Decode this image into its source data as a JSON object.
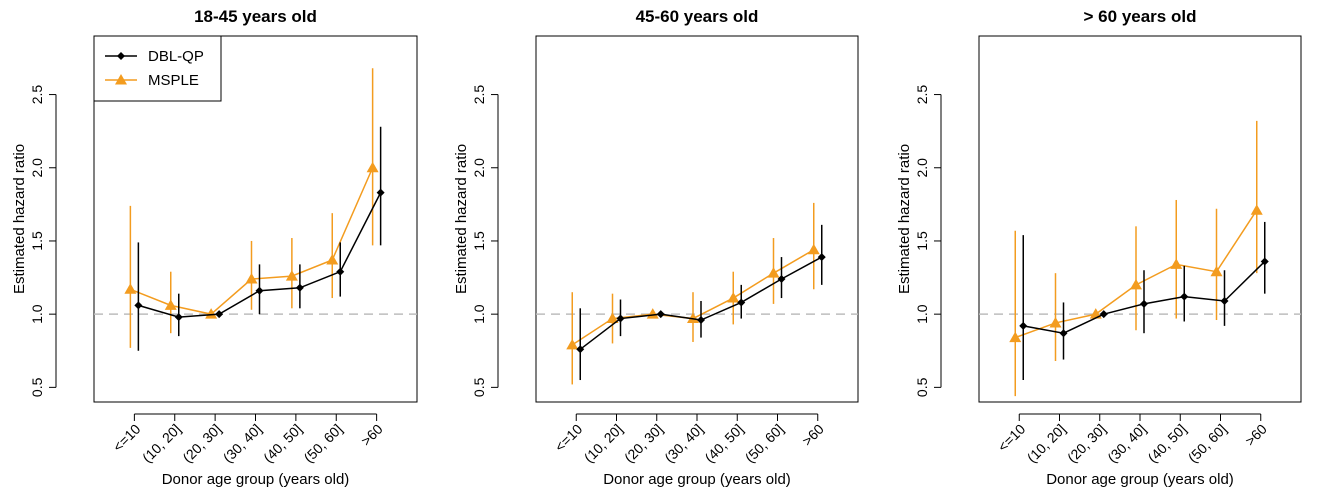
{
  "chart_data": [
    {
      "type": "line",
      "title": "18-45 years old",
      "xlabel": "Donor age group (years old)",
      "ylabel": "Estimated hazard ratio",
      "categories": [
        "<=10",
        "(10, 20]",
        "(20, 30]",
        "(30, 40]",
        "(40, 50]",
        "(50, 60]",
        ">60"
      ],
      "yticks": [
        "0.5",
        "1.0",
        "1.5",
        "2.0",
        "2.5"
      ],
      "ylim": [
        0.4,
        2.9
      ],
      "reference_line": 1.0,
      "legend": {
        "position": "top-left",
        "entries": [
          "DBL-QP",
          "MSPLE"
        ]
      },
      "series": [
        {
          "name": "DBL-QP",
          "color": "#000000",
          "marker": "diamond",
          "values": [
            1.06,
            0.98,
            1.0,
            1.16,
            1.18,
            1.29,
            1.83
          ],
          "lower": [
            0.75,
            0.85,
            1.0,
            1.0,
            1.04,
            1.12,
            1.47
          ],
          "upper": [
            1.49,
            1.14,
            1.0,
            1.34,
            1.34,
            1.49,
            2.28
          ]
        },
        {
          "name": "MSPLE",
          "color": "#F39C1F",
          "marker": "triangle",
          "values": [
            1.17,
            1.06,
            1.0,
            1.24,
            1.26,
            1.37,
            2.0
          ],
          "lower": [
            0.77,
            0.87,
            1.0,
            1.03,
            1.04,
            1.11,
            1.47
          ],
          "upper": [
            1.74,
            1.29,
            1.0,
            1.5,
            1.52,
            1.69,
            2.68
          ]
        }
      ]
    },
    {
      "type": "line",
      "title": "45-60 years old",
      "xlabel": "Donor age group (years old)",
      "ylabel": "Estimated hazard ratio",
      "categories": [
        "<=10",
        "(10, 20]",
        "(20, 30]",
        "(30, 40]",
        "(40, 50]",
        "(50, 60]",
        ">60"
      ],
      "yticks": [
        "0.5",
        "1.0",
        "1.5",
        "2.0",
        "2.5"
      ],
      "ylim": [
        0.4,
        2.9
      ],
      "reference_line": 1.0,
      "series": [
        {
          "name": "DBL-QP",
          "color": "#000000",
          "marker": "diamond",
          "values": [
            0.76,
            0.97,
            1.0,
            0.96,
            1.08,
            1.24,
            1.39
          ],
          "lower": [
            0.55,
            0.85,
            1.0,
            0.84,
            0.97,
            1.11,
            1.2
          ],
          "upper": [
            1.04,
            1.1,
            1.0,
            1.09,
            1.2,
            1.39,
            1.61
          ]
        },
        {
          "name": "MSPLE",
          "color": "#F39C1F",
          "marker": "triangle",
          "values": [
            0.79,
            0.97,
            1.0,
            0.97,
            1.11,
            1.28,
            1.44
          ],
          "lower": [
            0.52,
            0.8,
            1.0,
            0.81,
            0.93,
            1.07,
            1.17
          ],
          "upper": [
            1.15,
            1.14,
            1.0,
            1.15,
            1.29,
            1.52,
            1.76
          ]
        }
      ]
    },
    {
      "type": "line",
      "title": "> 60 years old",
      "xlabel": "Donor age group (years old)",
      "ylabel": "Estimated hazard ratio",
      "categories": [
        "<=10",
        "(10, 20]",
        "(20, 30]",
        "(30, 40]",
        "(40, 50]",
        "(50, 60]",
        ">60"
      ],
      "yticks": [
        "0.5",
        "1.0",
        "1.5",
        "2.0",
        "2.5"
      ],
      "ylim": [
        0.4,
        2.9
      ],
      "reference_line": 1.0,
      "series": [
        {
          "name": "DBL-QP",
          "color": "#000000",
          "marker": "diamond",
          "values": [
            0.92,
            0.87,
            1.0,
            1.07,
            1.12,
            1.09,
            1.36
          ],
          "lower": [
            0.55,
            0.69,
            1.0,
            0.87,
            0.95,
            0.92,
            1.14
          ],
          "upper": [
            1.54,
            1.08,
            1.0,
            1.3,
            1.33,
            1.3,
            1.63
          ]
        },
        {
          "name": "MSPLE",
          "color": "#F39C1F",
          "marker": "triangle",
          "values": [
            0.84,
            0.94,
            1.0,
            1.2,
            1.34,
            1.29,
            1.71
          ],
          "lower": [
            0.44,
            0.68,
            1.0,
            0.89,
            0.97,
            0.96,
            1.28
          ],
          "upper": [
            1.57,
            1.28,
            1.0,
            1.6,
            1.78,
            1.72,
            2.32
          ]
        }
      ]
    }
  ]
}
